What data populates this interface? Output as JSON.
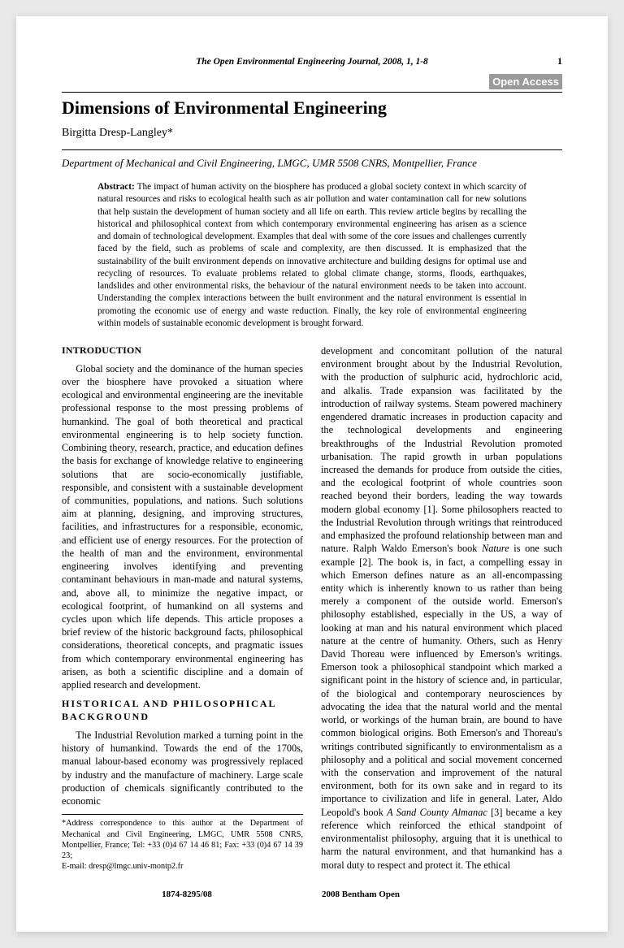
{
  "header": {
    "journal_line": "The Open Environmental Engineering Journal, 2008, 1, 1-8",
    "page_number": "1",
    "open_access_badge": "Open Access"
  },
  "article": {
    "title": "Dimensions of Environmental Engineering",
    "author": "Birgitta Dresp-Langley*",
    "affiliation": "Department of Mechanical and Civil Engineering, LMGC, UMR 5508 CNRS, Montpellier, France",
    "abstract_label": "Abstract:",
    "abstract_text": " The impact of human activity on the biosphere has produced a global society context in which scarcity of natural resources and risks to ecological health such as air pollution and water contamination call for new solutions that help sustain the development of human society and all life on earth. This review article begins by recalling the historical and philosophical context from which contemporary environmental engineering has arisen as a science and domain of technological development. Examples that deal with some of the core issues and challenges currently faced by the field, such as problems of scale and complexity, are then discussed. It is emphasized that the sustainability of the built environment depends on innovative architecture and building designs for optimal use and recycling of resources. To evaluate problems related to global climate change, storms, floods, earthquakes, landslides and other environmental risks, the behaviour of the natural environment needs to be taken into account. Understanding the complex interactions between the built environment and the natural environment is essential in promoting the economic use of energy and waste reduction. Finally, the key role of environmental engineering within models of sustainable economic development is brought forward."
  },
  "sections": {
    "intro_heading": "INTRODUCTION",
    "intro_para": "Global society and the dominance of the human species over the biosphere have provoked a situation where ecological and environmental engineering are the inevitable professional response to the most pressing problems of humankind. The goal of both theoretical and practical environmental engineering is to help society function. Combining theory, research, practice, and education defines the basis for exchange of knowledge relative to engineering solutions that are socio-economically justifiable, responsible, and consistent with a sustainable development of communities, populations, and nations. Such solutions aim at planning, designing, and improving structures, facilities, and infrastructures for a responsible, economic, and efficient use of energy resources. For the protection of the health of man and the environment, environmental engineering involves identifying and preventing contaminant behaviours in man-made and natural systems, and, above all, to minimize the negative impact, or ecological footprint, of humankind on all systems and cycles upon which life depends. This article proposes a brief review of the historic background facts, philosophical considerations, theoretical concepts, and pragmatic issues from which contemporary environmental engineering has arisen, as both a scientific discipline and a domain of applied research and development.",
    "hist_heading": "HISTORICAL AND PHILOSOPHICAL BACKGROUND",
    "hist_para1": "The Industrial Revolution marked a turning point in the history of humankind. Towards the end of the 1700s, manual labour-based economy was progressively replaced by industry and the manufacture of machinery. Large scale production of chemicals significantly contributed to the economic",
    "hist_para2_a": "development and concomitant pollution of the natural environment brought about by the Industrial Revolution, with the production of sulphuric acid, hydrochloric acid, and alkalis. Trade expansion was facilitated by the introduction of railway systems. Steam powered machinery engendered dramatic increases in production capacity and the technological developments and engineering breakthroughs of the Industrial Revolution promoted urbanisation. The rapid growth in urban populations increased the demands for produce from outside the cities, and the ecological footprint of whole countries soon reached beyond their borders, leading the way towards modern global economy [1]. Some philosophers reacted to the Industrial Revolution through writings that reintroduced and emphasized the profound relationship between man and nature. Ralph Waldo Emerson's book ",
    "hist_book1": "Nature",
    "hist_para2_b": " is one such example [2]. The book is, in fact, a compelling essay in which Emerson defines nature as an all-encompassing entity which is inherently known to us rather than being merely a component of the outside world. Emerson's philosophy established, especially in the US, a way of looking at man and his natural environment which placed nature at the centre of humanity. Others, such as Henry David Thoreau were influenced by Emerson's writings. Emerson took a philosophical standpoint which marked a significant point in the history of science and, in particular, of the biological and contemporary neurosciences by advocating the idea that the natural world and the mental world, or workings of the human brain, are bound to have common biological origins. Both Emerson's and Thoreau's writings contributed significantly to environmentalism as a philosophy and a political and social movement concerned with the conservation and improvement of the natural environment, both for its own sake and in regard to its importance to civilization and life in general. Later, Aldo Leopold's book ",
    "hist_book2": "A Sand County Almanac",
    "hist_para2_c": " [3] became a key reference which reinforced the ethical standpoint of environmentalist philosophy, arguing that it is unethical to harm the natural environment, and that humankind has a moral duty to respect and protect it. The ethical"
  },
  "footnote": {
    "text": "*Address correspondence to this author at the Department of Mechanical and Civil Engineering, LMGC, UMR 5508 CNRS, Montpellier, France; Tel: +33 (0)4 67 14 46 81; Fax: +33 (0)4 67 14 39 23;",
    "email_label": "E-mail: ",
    "email": "dresp@lmgc.univ-montp2.fr"
  },
  "footer": {
    "left": "1874-8295/08",
    "right": "2008 Bentham Open"
  }
}
